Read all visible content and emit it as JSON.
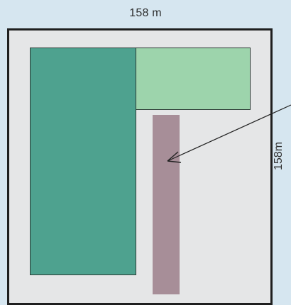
{
  "labels": {
    "top_dimension": "158 m",
    "side_dimension": "158m"
  },
  "colors": {
    "background": "#d6e6f0",
    "plot_fill": "#e5e6e7",
    "plot_border": "#1f1f1f",
    "dark_green": "#4ea28f",
    "light_green": "#9dd4ac",
    "mauve": "#a78e98"
  }
}
